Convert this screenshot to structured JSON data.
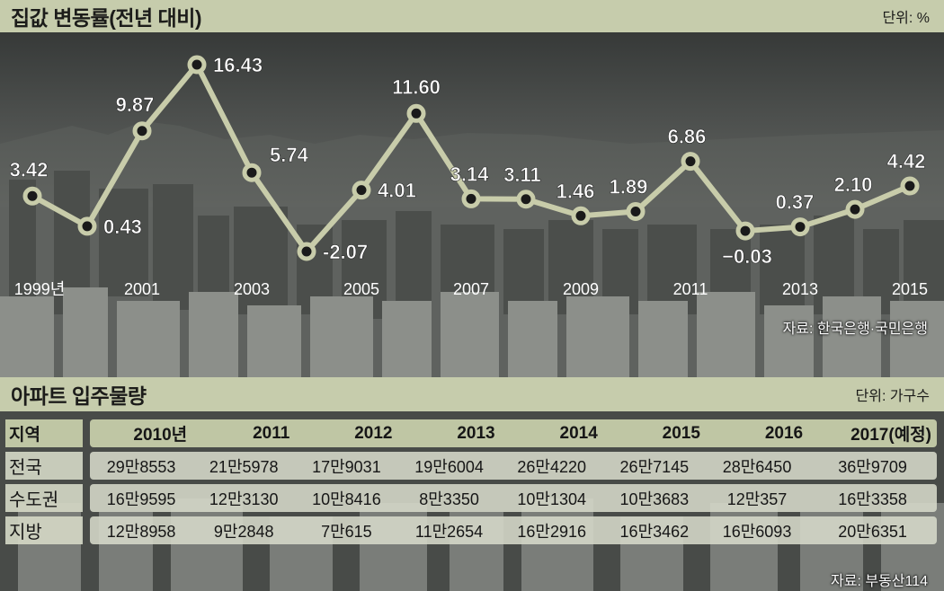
{
  "chart_section": {
    "title": "집값 변동률(전년 대비)",
    "unit": "단위: %",
    "source": "자료: 한국은행·국민은행"
  },
  "chart_data": {
    "type": "line",
    "x": [
      1999,
      2000,
      2001,
      2002,
      2003,
      2004,
      2005,
      2006,
      2007,
      2008,
      2009,
      2010,
      2011,
      2012,
      2013,
      2014,
      2015
    ],
    "values": [
      3.42,
      0.43,
      9.87,
      16.43,
      5.74,
      -2.07,
      4.01,
      11.6,
      3.14,
      3.11,
      1.46,
      1.89,
      6.86,
      -0.03,
      0.37,
      2.1,
      4.42
    ],
    "value_labels": [
      "3.42",
      "0.43",
      "9.87",
      "16.43",
      "5.74",
      "-2.07",
      "4.01",
      "11.60",
      "3.14",
      "3.11",
      "1.46",
      "1.89",
      "6.86",
      "−0.03",
      "0.37",
      "2.10",
      "4.42"
    ],
    "x_tick_labels": [
      {
        "year": 1999,
        "label": "1999년"
      },
      {
        "year": 2001,
        "label": "2001"
      },
      {
        "year": 2003,
        "label": "2003"
      },
      {
        "year": 2005,
        "label": "2005"
      },
      {
        "year": 2007,
        "label": "2007"
      },
      {
        "year": 2009,
        "label": "2009"
      },
      {
        "year": 2011,
        "label": "2011"
      },
      {
        "year": 2013,
        "label": "2013"
      },
      {
        "year": 2015,
        "label": "2015"
      }
    ],
    "xlim": [
      1999,
      2015
    ],
    "ylim": [
      -2.07,
      16.43
    ],
    "grid": false,
    "line_color": "#c8ccaa",
    "marker_fill": "#1a1a1a"
  },
  "table_section": {
    "title": "아파트 입주물량",
    "unit": "단위: 가구수",
    "source": "자료: 부동산114",
    "header_label": "지역",
    "columns": [
      "2010년",
      "2011",
      "2012",
      "2013",
      "2014",
      "2015",
      "2016",
      "2017(예정)"
    ],
    "rows": [
      {
        "region": "전국",
        "values": [
          "29만8553",
          "21만5978",
          "17만9031",
          "19만6004",
          "26만4220",
          "26만7145",
          "28만6450",
          "36만9709"
        ]
      },
      {
        "region": "수도권",
        "values": [
          "16만9595",
          "12만3130",
          "10만8416",
          "8만3350",
          "10만1304",
          "10만3683",
          "12만357",
          "16만3358"
        ]
      },
      {
        "region": "지방",
        "values": [
          "12만8958",
          "9만2848",
          "7만615",
          "11만2654",
          "16만2916",
          "16만3462",
          "16만6093",
          "20만6351"
        ]
      }
    ]
  },
  "colors": {
    "accent": "#c6ccac",
    "text": "#1c1c1a"
  }
}
